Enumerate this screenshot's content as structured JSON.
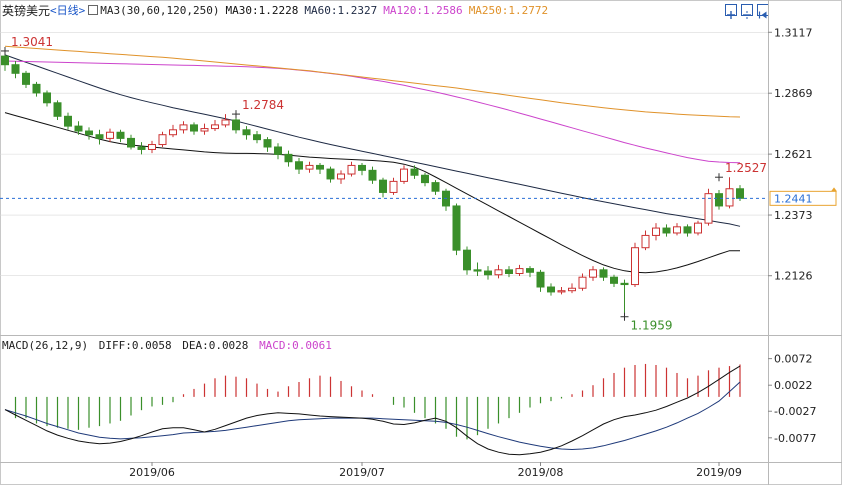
{
  "header": {
    "symbol": "英镑美元",
    "period": "<日线>",
    "ma_group": "MA3(30,60,120,250)",
    "ma30": "MA30:1.2228",
    "ma60": "MA60:1.2327",
    "ma120": "MA120:1.2586",
    "ma250": "MA250:1.2772"
  },
  "macd_header": {
    "params": "MACD(26,12,9)",
    "diff": "DIFF:0.0058",
    "dea": "DEA:0.0028",
    "macd": "MACD:0.0061"
  },
  "colors": {
    "up": "#cc3333",
    "down": "#3a8f2a",
    "ma30": "#111111",
    "ma60": "#1e2a44",
    "ma120": "#cc44cc",
    "ma250": "#e0922a",
    "grid": "#d9d9d9",
    "price_line": "#2a6fd6",
    "price_box": "#e8a430"
  },
  "chart_data": {
    "type": "candlestick",
    "title": "英镑美元<日线>",
    "x_ticks": [
      "2019/06",
      "2019/07",
      "2019/08",
      "2019/09"
    ],
    "y_ticks": [
      "1.3117",
      "1.2869",
      "1.2621",
      "1.2373",
      "1.2126"
    ],
    "ylim": [
      1.1905,
      1.3167
    ],
    "current_price": "1.2441",
    "annotations": [
      {
        "label": "1.3041",
        "index": 0,
        "value": 1.3041,
        "kind": "high"
      },
      {
        "label": "1.2784",
        "index": 22,
        "value": 1.2784,
        "kind": "high"
      },
      {
        "label": "1.1959",
        "index": 59,
        "value": 1.1959,
        "kind": "low"
      },
      {
        "label": "1.2527",
        "index": 68,
        "value": 1.2527,
        "kind": "high"
      }
    ],
    "candles": [
      [
        1.302,
        1.2985,
        1.3041,
        1.296
      ],
      [
        1.2985,
        1.295,
        1.3,
        1.293
      ],
      [
        1.295,
        1.2905,
        1.296,
        1.289
      ],
      [
        1.2905,
        1.287,
        1.2915,
        1.2855
      ],
      [
        1.287,
        1.283,
        1.288,
        1.2815
      ],
      [
        1.283,
        1.2775,
        1.284,
        1.276
      ],
      [
        1.2775,
        1.2735,
        1.279,
        1.272
      ],
      [
        1.2735,
        1.2715,
        1.2755,
        1.27
      ],
      [
        1.2715,
        1.27,
        1.273,
        1.268
      ],
      [
        1.27,
        1.2685,
        1.272,
        1.266
      ],
      [
        1.2685,
        1.271,
        1.2725,
        1.267
      ],
      [
        1.271,
        1.2685,
        1.272,
        1.267
      ],
      [
        1.2685,
        1.265,
        1.27,
        1.264
      ],
      [
        1.265,
        1.264,
        1.267,
        1.262
      ],
      [
        1.264,
        1.266,
        1.2675,
        1.2625
      ],
      [
        1.266,
        1.27,
        1.2712,
        1.265
      ],
      [
        1.27,
        1.272,
        1.274,
        1.269
      ],
      [
        1.272,
        1.274,
        1.2755,
        1.2705
      ],
      [
        1.274,
        1.2715,
        1.275,
        1.27
      ],
      [
        1.2715,
        1.2725,
        1.2745,
        1.27
      ],
      [
        1.2725,
        1.274,
        1.276,
        1.2715
      ],
      [
        1.274,
        1.276,
        1.2784,
        1.273
      ],
      [
        1.276,
        1.272,
        1.277,
        1.2705
      ],
      [
        1.272,
        1.27,
        1.2735,
        1.268
      ],
      [
        1.27,
        1.268,
        1.2715,
        1.2665
      ],
      [
        1.268,
        1.265,
        1.269,
        1.263
      ],
      [
        1.265,
        1.262,
        1.2665,
        1.26
      ],
      [
        1.262,
        1.259,
        1.2635,
        1.257
      ],
      [
        1.259,
        1.256,
        1.2605,
        1.254
      ],
      [
        1.256,
        1.2575,
        1.259,
        1.2545
      ],
      [
        1.2575,
        1.256,
        1.2585,
        1.254
      ],
      [
        1.256,
        1.252,
        1.257,
        1.2505
      ],
      [
        1.252,
        1.254,
        1.2555,
        1.25
      ],
      [
        1.254,
        1.2575,
        1.259,
        1.253
      ],
      [
        1.2575,
        1.2555,
        1.2585,
        1.2535
      ],
      [
        1.2555,
        1.2515,
        1.257,
        1.25
      ],
      [
        1.2515,
        1.2465,
        1.2525,
        1.2445
      ],
      [
        1.2465,
        1.251,
        1.2525,
        1.2455
      ],
      [
        1.251,
        1.256,
        1.2575,
        1.25
      ],
      [
        1.256,
        1.2535,
        1.2575,
        1.252
      ],
      [
        1.2535,
        1.2505,
        1.2545,
        1.249
      ],
      [
        1.2505,
        1.247,
        1.2515,
        1.2455
      ],
      [
        1.247,
        1.241,
        1.248,
        1.239
      ],
      [
        1.241,
        1.223,
        1.242,
        1.221
      ],
      [
        1.223,
        1.215,
        1.2245,
        1.213
      ],
      [
        1.215,
        1.2145,
        1.218,
        1.2125
      ],
      [
        1.2145,
        1.213,
        1.2165,
        1.211
      ],
      [
        1.213,
        1.215,
        1.217,
        1.2115
      ],
      [
        1.215,
        1.2135,
        1.2165,
        1.212
      ],
      [
        1.2135,
        1.2155,
        1.217,
        1.2125
      ],
      [
        1.2155,
        1.214,
        1.2165,
        1.212
      ],
      [
        1.214,
        1.208,
        1.215,
        1.206
      ],
      [
        1.208,
        1.206,
        1.2095,
        1.2045
      ],
      [
        1.206,
        1.2065,
        1.208,
        1.205
      ],
      [
        1.2065,
        1.2075,
        1.2095,
        1.2055
      ],
      [
        1.2075,
        1.212,
        1.2135,
        1.2065
      ],
      [
        1.212,
        1.215,
        1.2165,
        1.2105
      ],
      [
        1.215,
        1.212,
        1.216,
        1.2105
      ],
      [
        1.212,
        1.2095,
        1.213,
        1.208
      ],
      [
        1.2095,
        1.209,
        1.211,
        1.1959
      ],
      [
        1.209,
        1.224,
        1.226,
        1.208
      ],
      [
        1.224,
        1.229,
        1.231,
        1.223
      ],
      [
        1.229,
        1.232,
        1.234,
        1.227
      ],
      [
        1.232,
        1.23,
        1.2335,
        1.2285
      ],
      [
        1.23,
        1.2325,
        1.234,
        1.229
      ],
      [
        1.2325,
        1.23,
        1.2335,
        1.2285
      ],
      [
        1.23,
        1.234,
        1.235,
        1.229
      ],
      [
        1.234,
        1.246,
        1.248,
        1.233
      ],
      [
        1.246,
        1.241,
        1.2475,
        1.2395
      ],
      [
        1.241,
        1.248,
        1.2527,
        1.24
      ],
      [
        1.248,
        1.2441,
        1.2495,
        1.243
      ]
    ],
    "series": [
      {
        "name": "MA30",
        "values": [
          1.279,
          1.2778,
          1.2766,
          1.2754,
          1.2742,
          1.273,
          1.2718,
          1.2706,
          1.2694,
          1.2682,
          1.2672,
          1.2664,
          1.2658,
          1.2654,
          1.265,
          1.2646,
          1.2642,
          1.2638,
          1.2634,
          1.263,
          1.2627,
          1.2625,
          1.2624,
          1.2624,
          1.2623,
          1.2622,
          1.262,
          1.2617,
          1.2613,
          1.2609,
          1.2606,
          1.2603,
          1.2601,
          1.2599,
          1.2597,
          1.2595,
          1.2592,
          1.2588,
          1.258,
          1.2568,
          1.255,
          1.2528,
          1.2505,
          1.2482,
          1.2459,
          1.2436,
          1.2413,
          1.239,
          1.2367,
          1.2344,
          1.2321,
          1.2298,
          1.2275,
          1.2252,
          1.223,
          1.2208,
          1.2188,
          1.217,
          1.2156,
          1.2146,
          1.214,
          1.2138,
          1.2141,
          1.2148,
          1.2158,
          1.217,
          1.2184,
          1.2199,
          1.2214,
          1.2228,
          1.2228
        ]
      },
      {
        "name": "MA60",
        "values": [
          1.3025,
          1.301,
          1.2995,
          1.298,
          1.2965,
          1.295,
          1.2935,
          1.292,
          1.2905,
          1.289,
          1.2876,
          1.2863,
          1.2851,
          1.284,
          1.283,
          1.282,
          1.281,
          1.2801,
          1.2792,
          1.2783,
          1.2774,
          1.2765,
          1.2756,
          1.2745,
          1.2734,
          1.2723,
          1.2712,
          1.2701,
          1.269,
          1.268,
          1.267,
          1.266,
          1.2651,
          1.2642,
          1.2633,
          1.2624,
          1.2615,
          1.2606,
          1.2597,
          1.2588,
          1.2579,
          1.257,
          1.2561,
          1.2552,
          1.2543,
          1.2534,
          1.2525,
          1.2516,
          1.2507,
          1.2498,
          1.2489,
          1.248,
          1.2471,
          1.2462,
          1.2453,
          1.2444,
          1.2435,
          1.2427,
          1.2419,
          1.2411,
          1.2403,
          1.2395,
          1.2387,
          1.2379,
          1.2372,
          1.2365,
          1.2358,
          1.2351,
          1.2344,
          1.2337,
          1.2327
        ]
      },
      {
        "name": "MA120",
        "values": [
          1.3,
          1.2999,
          1.2998,
          1.2997,
          1.2996,
          1.2995,
          1.2994,
          1.2993,
          1.2992,
          1.2991,
          1.299,
          1.2989,
          1.2988,
          1.2987,
          1.2986,
          1.2985,
          1.2984,
          1.2983,
          1.2982,
          1.2981,
          1.298,
          1.2979,
          1.2978,
          1.2977,
          1.2975,
          1.2973,
          1.297,
          1.2967,
          1.2963,
          1.2959,
          1.2954,
          1.2949,
          1.2944,
          1.2938,
          1.2931,
          1.2924,
          1.2917,
          1.2909,
          1.2901,
          1.2892,
          1.2883,
          1.2874,
          1.2864,
          1.2854,
          1.2844,
          1.2833,
          1.2822,
          1.2811,
          1.28,
          1.2788,
          1.2776,
          1.2764,
          1.2752,
          1.274,
          1.2728,
          1.2716,
          1.2704,
          1.2692,
          1.268,
          1.2668,
          1.2657,
          1.2646,
          1.2636,
          1.2626,
          1.2616,
          1.2607,
          1.2599,
          1.2592,
          1.2589,
          1.2587,
          1.2586
        ]
      },
      {
        "name": "MA250",
        "values": [
          1.306,
          1.3057,
          1.3054,
          1.3051,
          1.3048,
          1.3045,
          1.3042,
          1.3039,
          1.3036,
          1.3033,
          1.303,
          1.3027,
          1.3024,
          1.3021,
          1.3018,
          1.3015,
          1.3012,
          1.3008,
          1.3004,
          1.3,
          1.2996,
          1.2992,
          1.2988,
          1.2984,
          1.298,
          1.2976,
          1.2972,
          1.2968,
          1.2964,
          1.296,
          1.2955,
          1.295,
          1.2945,
          1.294,
          1.2935,
          1.293,
          1.2925,
          1.292,
          1.2915,
          1.291,
          1.2905,
          1.29,
          1.2895,
          1.289,
          1.2884,
          1.2878,
          1.2872,
          1.2866,
          1.286,
          1.2854,
          1.2848,
          1.2842,
          1.2836,
          1.283,
          1.2825,
          1.282,
          1.2815,
          1.281,
          1.2805,
          1.2801,
          1.2797,
          1.2793,
          1.279,
          1.2787,
          1.2784,
          1.2781,
          1.2779,
          1.2777,
          1.2775,
          1.2773,
          1.2772
        ]
      }
    ],
    "macd": {
      "y_ticks": [
        "0.0072",
        "0.0022",
        "-0.0027",
        "-0.0077"
      ],
      "ylim": [
        -0.0115,
        0.0092
      ],
      "diff": [
        -0.0024,
        -0.0034,
        -0.0044,
        -0.0054,
        -0.0064,
        -0.0072,
        -0.0078,
        -0.0083,
        -0.0086,
        -0.0088,
        -0.0087,
        -0.0084,
        -0.0079,
        -0.0073,
        -0.0066,
        -0.006,
        -0.0058,
        -0.0058,
        -0.0062,
        -0.0066,
        -0.0061,
        -0.0054,
        -0.0047,
        -0.004,
        -0.0035,
        -0.0032,
        -0.003,
        -0.0031,
        -0.0032,
        -0.0034,
        -0.0036,
        -0.0037,
        -0.0038,
        -0.0039,
        -0.004,
        -0.0042,
        -0.0046,
        -0.0051,
        -0.0052,
        -0.0049,
        -0.0044,
        -0.004,
        -0.0046,
        -0.0058,
        -0.0074,
        -0.0088,
        -0.0098,
        -0.0104,
        -0.0108,
        -0.0109,
        -0.0107,
        -0.0104,
        -0.0099,
        -0.0092,
        -0.0083,
        -0.0073,
        -0.0062,
        -0.0051,
        -0.0043,
        -0.0037,
        -0.0034,
        -0.003,
        -0.0025,
        -0.0018,
        -0.001,
        -0.0002,
        0.0008,
        0.002,
        0.0033,
        0.0046,
        0.0058
      ],
      "dea": [
        -0.0024,
        -0.003,
        -0.0036,
        -0.0043,
        -0.005,
        -0.0056,
        -0.0062,
        -0.0068,
        -0.0072,
        -0.0076,
        -0.0078,
        -0.0079,
        -0.0078,
        -0.0077,
        -0.0075,
        -0.0073,
        -0.0071,
        -0.0068,
        -0.0067,
        -0.0066,
        -0.0065,
        -0.0063,
        -0.006,
        -0.0057,
        -0.0054,
        -0.0051,
        -0.0048,
        -0.0045,
        -0.0043,
        -0.0042,
        -0.0041,
        -0.004,
        -0.004,
        -0.004,
        -0.004,
        -0.004,
        -0.0041,
        -0.0042,
        -0.0043,
        -0.0044,
        -0.0045,
        -0.0046,
        -0.0048,
        -0.0052,
        -0.0057,
        -0.0063,
        -0.0069,
        -0.0075,
        -0.008,
        -0.0085,
        -0.0089,
        -0.0093,
        -0.0096,
        -0.0098,
        -0.0099,
        -0.0098,
        -0.0096,
        -0.0092,
        -0.0087,
        -0.0082,
        -0.0076,
        -0.007,
        -0.0064,
        -0.0057,
        -0.0049,
        -0.004,
        -0.0031,
        -0.002,
        -0.0008,
        0.001,
        0.0028
      ],
      "hist": [
        0.0,
        -0.004,
        -0.004,
        -0.005,
        -0.0055,
        -0.0058,
        -0.006,
        -0.0062,
        -0.0058,
        -0.0055,
        -0.005,
        -0.0045,
        -0.0035,
        -0.0025,
        -0.0018,
        -0.0015,
        -0.001,
        0.0005,
        0.0015,
        0.0025,
        0.0035,
        0.004,
        0.0038,
        0.0035,
        0.0025,
        0.0015,
        0.001,
        0.002,
        0.0028,
        0.0035,
        0.004,
        0.0038,
        0.003,
        0.002,
        0.0012,
        0.0005,
        0.0,
        -0.0015,
        -0.002,
        -0.003,
        -0.004,
        -0.005,
        -0.006,
        -0.0075,
        -0.008,
        -0.0072,
        -0.006,
        -0.005,
        -0.004,
        -0.003,
        -0.002,
        -0.0012,
        -0.0008,
        -0.0003,
        0.0005,
        0.0012,
        0.0022,
        0.0035,
        0.0045,
        0.0055,
        0.006,
        0.0062,
        0.006,
        0.0055,
        0.0045,
        0.0035,
        0.004,
        0.005,
        0.0055,
        0.0058,
        0.0061
      ]
    }
  }
}
